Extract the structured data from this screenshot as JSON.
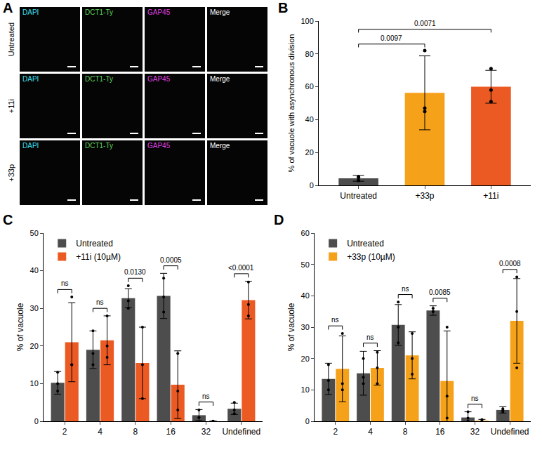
{
  "panel_A": {
    "panel": "A",
    "columns": [
      "DAPI",
      "DCT1-Ty",
      "GAP45",
      "Merge"
    ],
    "rows": [
      "Untreated",
      "+11i",
      "+33p"
    ]
  },
  "chart_data": [
    {
      "panel": "B",
      "type": "bar",
      "categories": [
        "Untreated",
        "+33p",
        "+11i"
      ],
      "values": [
        4.3,
        56.3,
        60
      ],
      "error": [
        1.8,
        22.5,
        10
      ],
      "points": [
        [
          3,
          5,
          5
        ],
        [
          82,
          47,
          45
        ],
        [
          71,
          58,
          51
        ]
      ],
      "colors": [
        "#4d4d4d",
        "#f6a11a",
        "#ec5a24"
      ],
      "ylabel": "% of vacuole with asynchronous division",
      "ylim": [
        0,
        100
      ],
      "yticks": [
        0,
        20,
        40,
        60,
        80,
        100
      ],
      "grid": false,
      "comparisons": [
        {
          "from": "Untreated",
          "to": "+33p",
          "text": "0.0097"
        },
        {
          "from": "Untreated",
          "to": "+11i",
          "text": "0.0071"
        }
      ]
    },
    {
      "panel": "C",
      "type": "bar",
      "categories": [
        "2",
        "4",
        "8",
        "16",
        "32",
        "Undefined"
      ],
      "series": [
        {
          "name": "Untreated",
          "color": "#4d4d4d",
          "values": [
            10.2,
            19,
            32.7,
            33.3,
            1.6,
            3.3
          ],
          "error": [
            3,
            5,
            2.5,
            6,
            1.5,
            1.5
          ],
          "points": [
            [
              13,
              10,
              8
            ],
            [
              24,
              18,
              15
            ],
            [
              36,
              32,
              30
            ],
            [
              38,
              33,
              29
            ],
            [
              3,
              1,
              1
            ],
            [
              5,
              3,
              2
            ]
          ]
        },
        {
          "name": "+11i (10µM)",
          "color": "#ec5a24",
          "values": [
            21,
            21.5,
            15.5,
            9.7,
            0,
            32.2
          ],
          "error": [
            10.5,
            6.5,
            9.5,
            9,
            0,
            5
          ],
          "points": [
            [
              33,
              15,
              15
            ],
            [
              28,
              20,
              17
            ],
            [
              25,
              15,
              6
            ],
            [
              18,
              8,
              3
            ],
            [
              0,
              0,
              0
            ],
            [
              37,
              31,
              28
            ]
          ]
        }
      ],
      "ylabel": "% of vacuole",
      "ylim": [
        0,
        50
      ],
      "yticks": [
        0,
        10,
        20,
        30,
        40,
        50
      ],
      "grid": false,
      "legend": "upper left",
      "comparisons": [
        {
          "category": "2",
          "text": "ns"
        },
        {
          "category": "4",
          "text": "ns"
        },
        {
          "category": "8",
          "text": "0.0130"
        },
        {
          "category": "16",
          "text": "0.0005"
        },
        {
          "category": "32",
          "text": "ns"
        },
        {
          "category": "Undefined",
          "text": "<0.0001"
        }
      ]
    },
    {
      "panel": "D",
      "type": "bar",
      "categories": [
        "2",
        "4",
        "8",
        "16",
        "32",
        "Undefined"
      ],
      "series": [
        {
          "name": "Untreated",
          "color": "#4d4d4d",
          "values": [
            13.5,
            15.3,
            30.7,
            35.3,
            1.2,
            3.6
          ],
          "error": [
            5,
            7,
            6.5,
            1.5,
            1.8,
            1
          ],
          "points": [
            [
              18,
              13,
              10
            ],
            [
              20,
              14,
              12
            ],
            [
              38,
              30,
              25
            ],
            [
              36,
              35,
              35
            ],
            [
              3,
              1,
              0
            ],
            [
              4,
              3.5,
              3
            ]
          ]
        },
        {
          "name": "+33p (10µM)",
          "color": "#f6a11a",
          "values": [
            16.7,
            17,
            21,
            12.8,
            0.2,
            32
          ],
          "error": [
            10.5,
            5.5,
            7.5,
            16,
            0.4,
            13.5
          ],
          "points": [
            [
              28,
              12,
              10
            ],
            [
              22,
              17,
              12
            ],
            [
              28,
              20,
              15
            ],
            [
              30,
              8,
              1
            ],
            [
              0.5,
              0,
              0
            ],
            [
              46,
              35,
              17
            ]
          ]
        }
      ],
      "ylabel": "% of vacuole",
      "ylim": [
        0,
        60
      ],
      "yticks": [
        0,
        10,
        20,
        30,
        40,
        50,
        60
      ],
      "grid": false,
      "legend": "upper left",
      "comparisons": [
        {
          "category": "2",
          "text": "ns"
        },
        {
          "category": "4",
          "text": "ns"
        },
        {
          "category": "8",
          "text": "ns"
        },
        {
          "category": "16",
          "text": "0.0085"
        },
        {
          "category": "32",
          "text": "ns"
        },
        {
          "category": "Undefined",
          "text": "0.0008"
        }
      ]
    }
  ]
}
